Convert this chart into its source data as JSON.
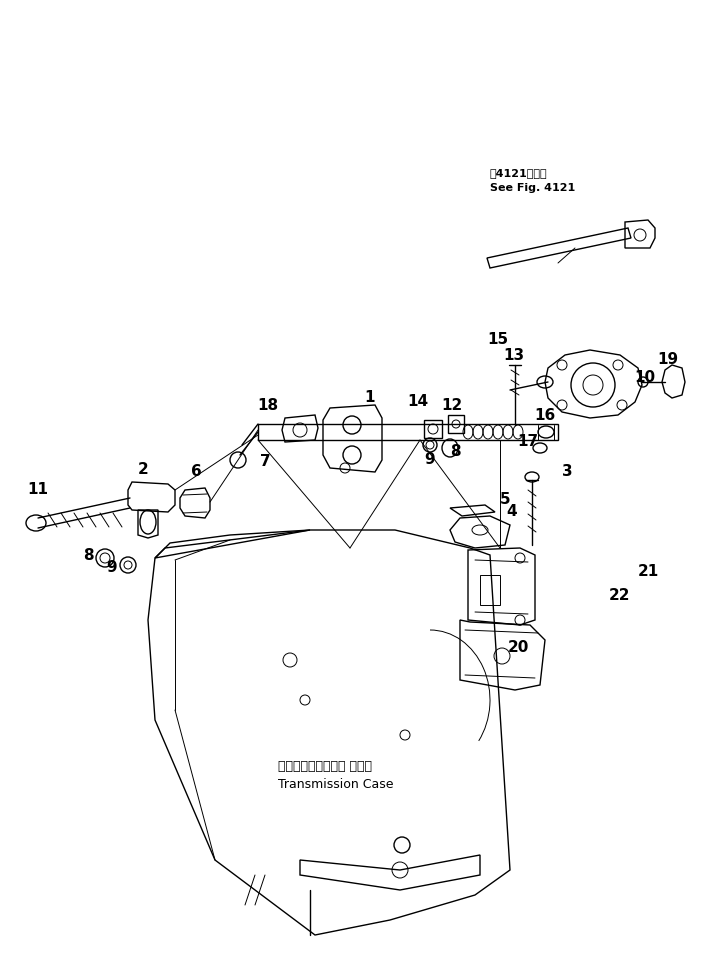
{
  "background_color": "#ffffff",
  "fig_width": 7.14,
  "fig_height": 9.73,
  "dpi": 100,
  "see_fig_line1": "笥4121図参照",
  "see_fig_line2": "See Fig. 4121",
  "trans_line1": "トランスミッション ケース",
  "trans_line2": "Transmission Case"
}
